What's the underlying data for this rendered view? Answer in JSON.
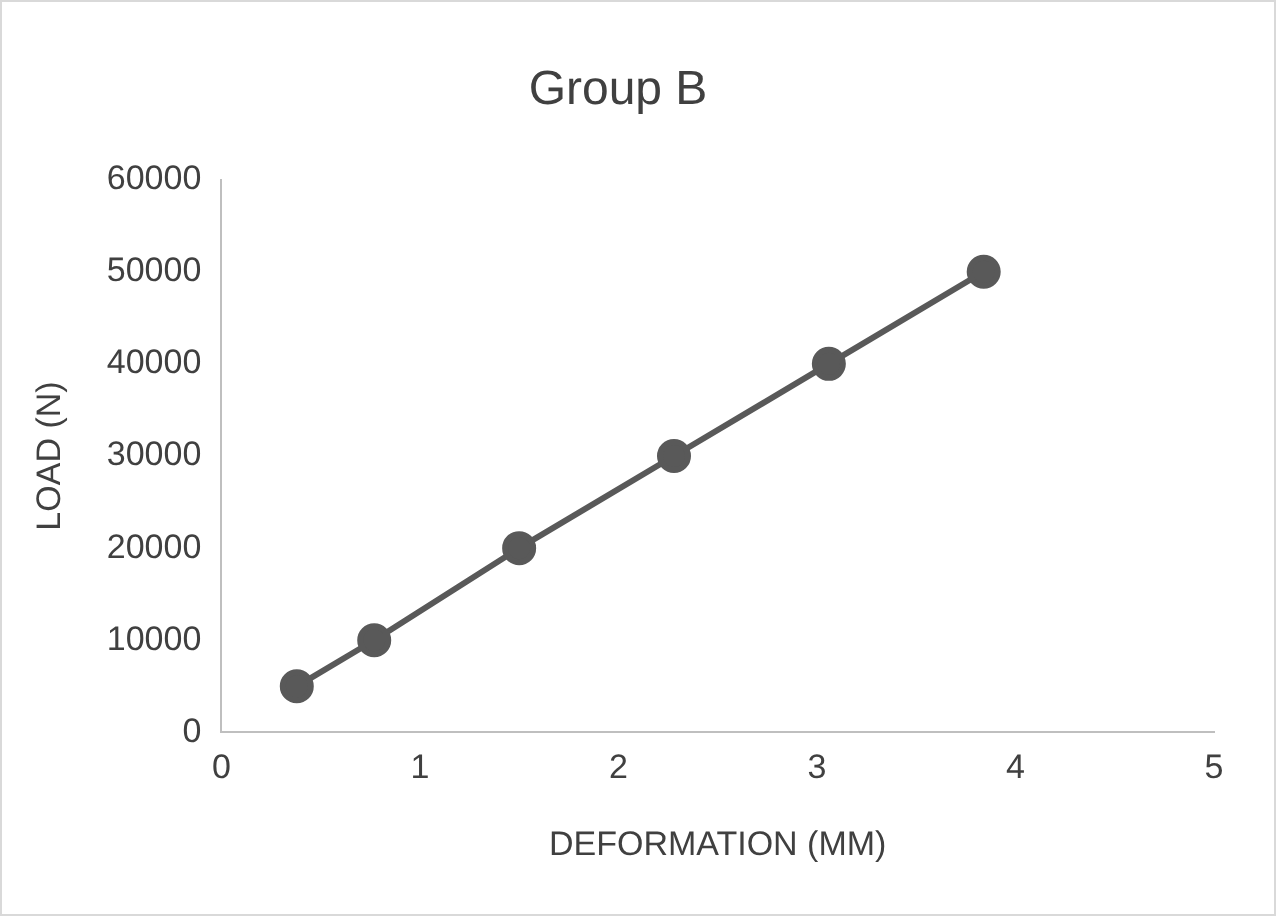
{
  "chart_data": {
    "type": "scatter",
    "title": "Group B",
    "xlabel": "DEFORMATION (MM)",
    "ylabel": "LOAD (N)",
    "x": [
      0.38,
      0.77,
      1.5,
      2.28,
      3.06,
      3.84
    ],
    "series": [
      {
        "type": "line",
        "color": "#595959",
        "values": [
          5000,
          10000,
          20000,
          30000,
          40000,
          50000
        ]
      }
    ],
    "xlim": [
      0,
      5
    ],
    "xticks": [
      0,
      1,
      2,
      3,
      4,
      5
    ],
    "ylim": [
      0,
      60000
    ],
    "yticks": [
      0,
      10000,
      20000,
      30000,
      40000,
      50000,
      60000
    ],
    "grid": false,
    "legend": false,
    "marker": "circle",
    "line_style": "solid"
  }
}
